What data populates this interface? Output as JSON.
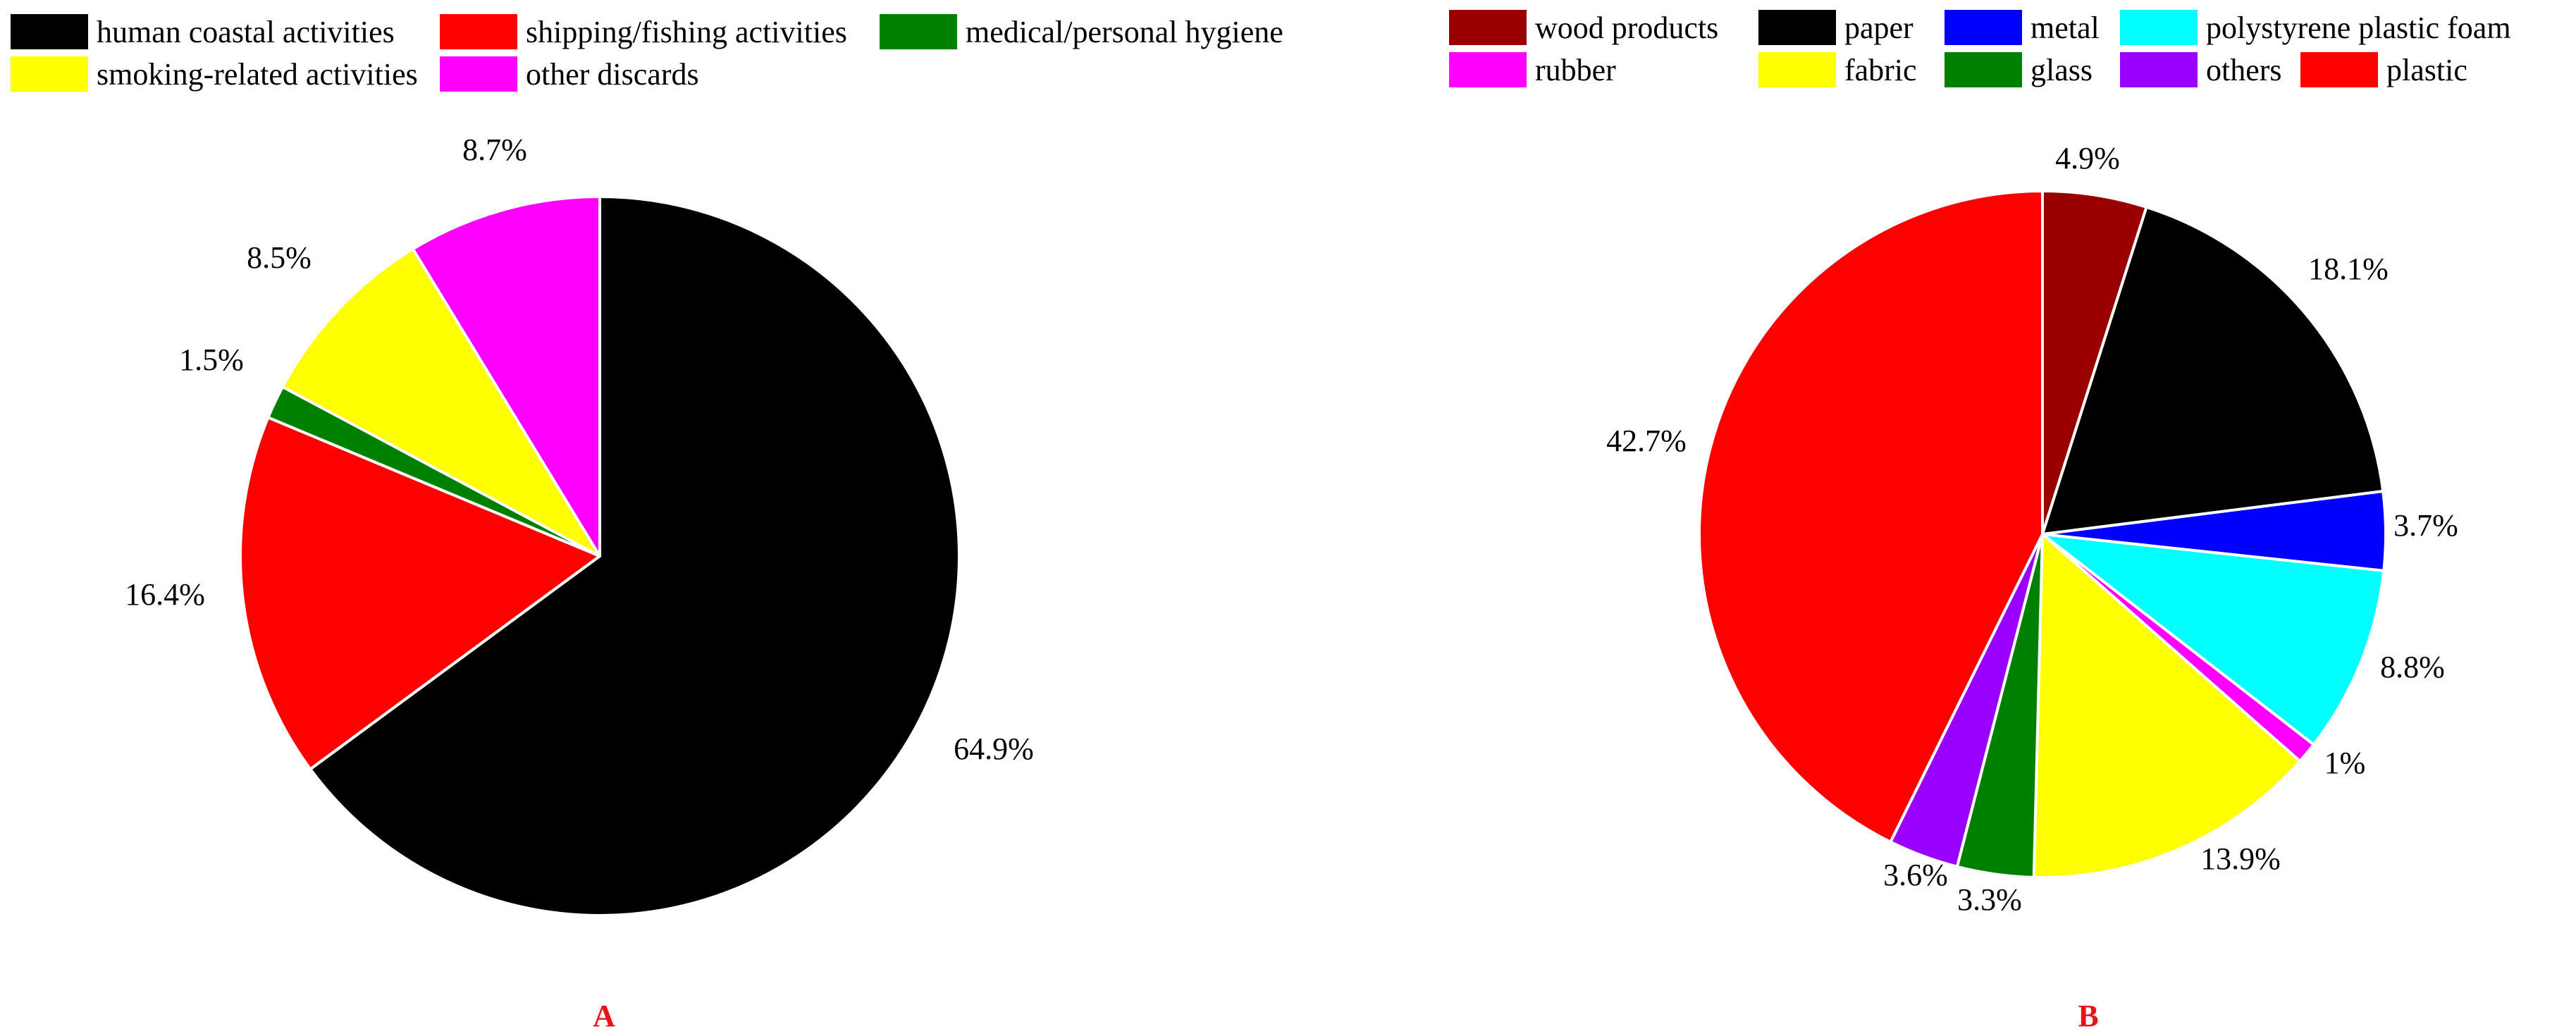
{
  "chart_data": [
    {
      "type": "pie",
      "panel_label": "A",
      "legend_position": "top",
      "slices": [
        {
          "label": "human coastal activities",
          "value": 64.9,
          "pct_label": "64.9%",
          "color": "#000000"
        },
        {
          "label": "shipping/fishing activities",
          "value": 16.4,
          "pct_label": "16.4%",
          "color": "#ff0000"
        },
        {
          "label": "medical/personal hygiene",
          "value": 1.5,
          "pct_label": "1.5%",
          "color": "#008000"
        },
        {
          "label": "smoking-related activities",
          "value": 8.5,
          "pct_label": "8.5%",
          "color": "#ffff00"
        },
        {
          "label": "other discards",
          "value": 8.7,
          "pct_label": "8.7%",
          "color": "#ff00ff"
        }
      ]
    },
    {
      "type": "pie",
      "panel_label": "B",
      "legend_position": "top",
      "slices": [
        {
          "label": "wood products",
          "value": 4.9,
          "pct_label": "4.9%",
          "color": "#990000"
        },
        {
          "label": "paper",
          "value": 18.1,
          "pct_label": "18.1%",
          "color": "#000000"
        },
        {
          "label": "metal",
          "value": 3.7,
          "pct_label": "3.7%",
          "color": "#0000ff"
        },
        {
          "label": "polystyrene plastic foam",
          "value": 8.8,
          "pct_label": "8.8%",
          "color": "#00ffff"
        },
        {
          "label": "rubber",
          "value": 1,
          "pct_label": "1%",
          "color": "#ff00ff"
        },
        {
          "label": "fabric",
          "value": 13.9,
          "pct_label": "13.9%",
          "color": "#ffff00"
        },
        {
          "label": "glass",
          "value": 3.6,
          "pct_label": "3.6%",
          "color": "#008000"
        },
        {
          "label": "others",
          "value": 3.3,
          "pct_label": "3.3%",
          "color": "#9900ff"
        },
        {
          "label": "plastic",
          "value": 42.7,
          "pct_label": "42.7%",
          "color": "#ff0000"
        }
      ]
    }
  ]
}
